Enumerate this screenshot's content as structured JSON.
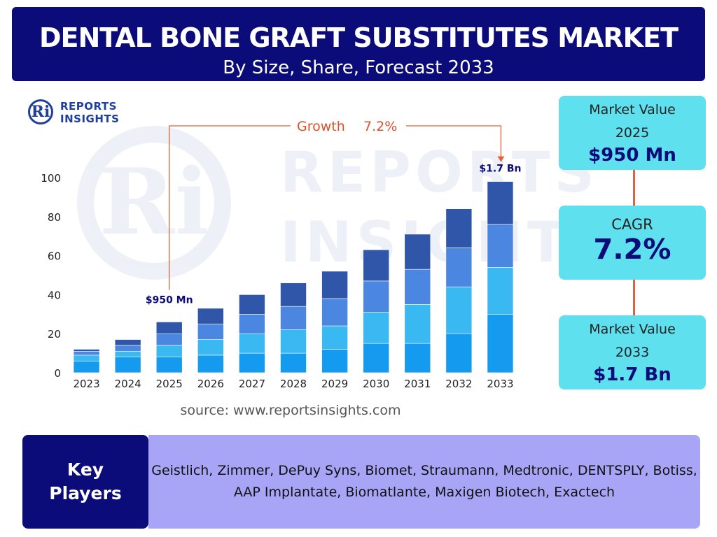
{
  "header": {
    "title": "DENTAL BONE GRAFT SUBSTITUTES MARKET",
    "subtitle": "By Size, Share, Forecast 2033"
  },
  "logo": {
    "line1": "REPORTS",
    "line2": "INSIGHTS",
    "mark": "Ri"
  },
  "chart_data": {
    "type": "bar",
    "stacked": true,
    "categories": [
      "2023",
      "2024",
      "2025",
      "2026",
      "2027",
      "2028",
      "2029",
      "2030",
      "2031",
      "2032",
      "2033"
    ],
    "series": [
      {
        "values": [
          6,
          8,
          8,
          9,
          10,
          10,
          12,
          15,
          15,
          20,
          30
        ]
      },
      {
        "values": [
          3,
          3,
          6,
          8,
          10,
          12,
          12,
          16,
          20,
          24,
          24
        ]
      },
      {
        "values": [
          2,
          3,
          6,
          8,
          10,
          12,
          14,
          16,
          18,
          20,
          22
        ]
      },
      {
        "values": [
          1,
          3,
          6,
          8,
          10,
          12,
          14,
          16,
          18,
          20,
          22
        ]
      }
    ],
    "totals": [
      12,
      17,
      26,
      33,
      40,
      46,
      52,
      63,
      71,
      84,
      98
    ],
    "ylim": [
      0,
      100
    ],
    "yticks": [
      0,
      20,
      40,
      60,
      80,
      100
    ],
    "colors": [
      "#149bf0",
      "#3ab8f2",
      "#4b86e0",
      "#2f56a8"
    ],
    "annotations": {
      "start_label": "$950 Mn",
      "start_category": "2025",
      "end_label": "$1.7 Bn",
      "end_category": "2033",
      "growth_label": "Growth",
      "growth_value": "7.2%"
    },
    "grid": false,
    "legend": "none"
  },
  "source": "source: www.reportsinsights.com",
  "cards": {
    "market_value_start": {
      "label_line1": "Market Value",
      "label_line2": "2025",
      "value": "$950 Mn"
    },
    "cagr": {
      "label": "CAGR",
      "value": "7.2%"
    },
    "market_value_end": {
      "label_line1": "Market Value",
      "label_line2": "2033",
      "value": "$1.7 Bn"
    }
  },
  "key_players": {
    "label_line1": "Key",
    "label_line2": "Players",
    "line1": "Geistlich, Zimmer, DePuy Syns, Biomet, Straumann, Medtronic, DENTSPLY, Botiss,",
    "line2": "AAP Implantate, Biomatlante, Maxigen Biotech, Exactech"
  },
  "colors": {
    "navy": "#0b0b7a",
    "cyan_card": "#5fe0ee",
    "connector": "#e2603a",
    "players_box": "#a8a5f7"
  }
}
